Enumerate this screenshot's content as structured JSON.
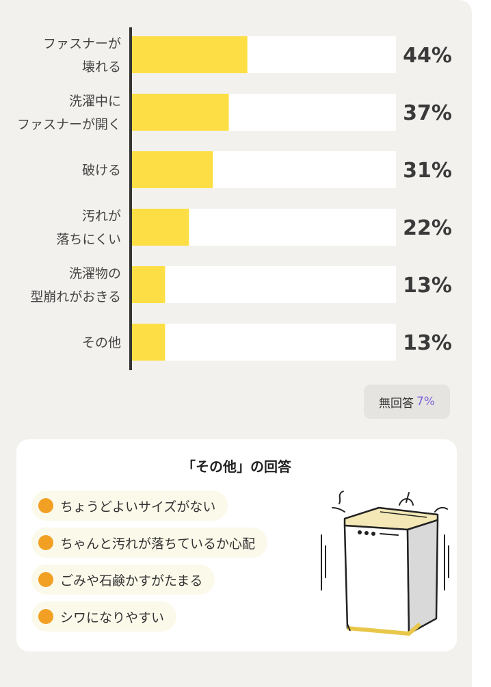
{
  "chart_data": {
    "type": "bar",
    "orientation": "horizontal",
    "categories": [
      [
        "ファスナーが",
        "壊れる"
      ],
      [
        "洗濯中に",
        "ファスナーが開く"
      ],
      [
        "破ける"
      ],
      [
        "汚れが",
        "落ちにくい"
      ],
      [
        "洗濯物の",
        "型崩れがおきる"
      ],
      [
        "その他"
      ]
    ],
    "values": [
      44,
      37,
      31,
      22,
      13,
      13
    ],
    "value_labels": [
      "44%",
      "37%",
      "31%",
      "22%",
      "13%",
      "13%"
    ],
    "xlim": [
      0,
      100
    ],
    "unit": "%",
    "bar_color": "#fddf45",
    "track_color": "#ffffff",
    "axis_color": "#333333",
    "grid": false,
    "legend": "none"
  },
  "no_answer": {
    "label": "無回答",
    "value": "7%",
    "value_color": "#7b62d8"
  },
  "other_answers": {
    "title": "「その他」の回答",
    "items": [
      "ちょうどよいサイズがない",
      "ちゃんと汚れが落ちているか心配",
      "ごみや石鹸かすがたまる",
      "シワになりやすい"
    ],
    "dot_color": "#f2a024",
    "illustration": "washing-machine-icon"
  }
}
